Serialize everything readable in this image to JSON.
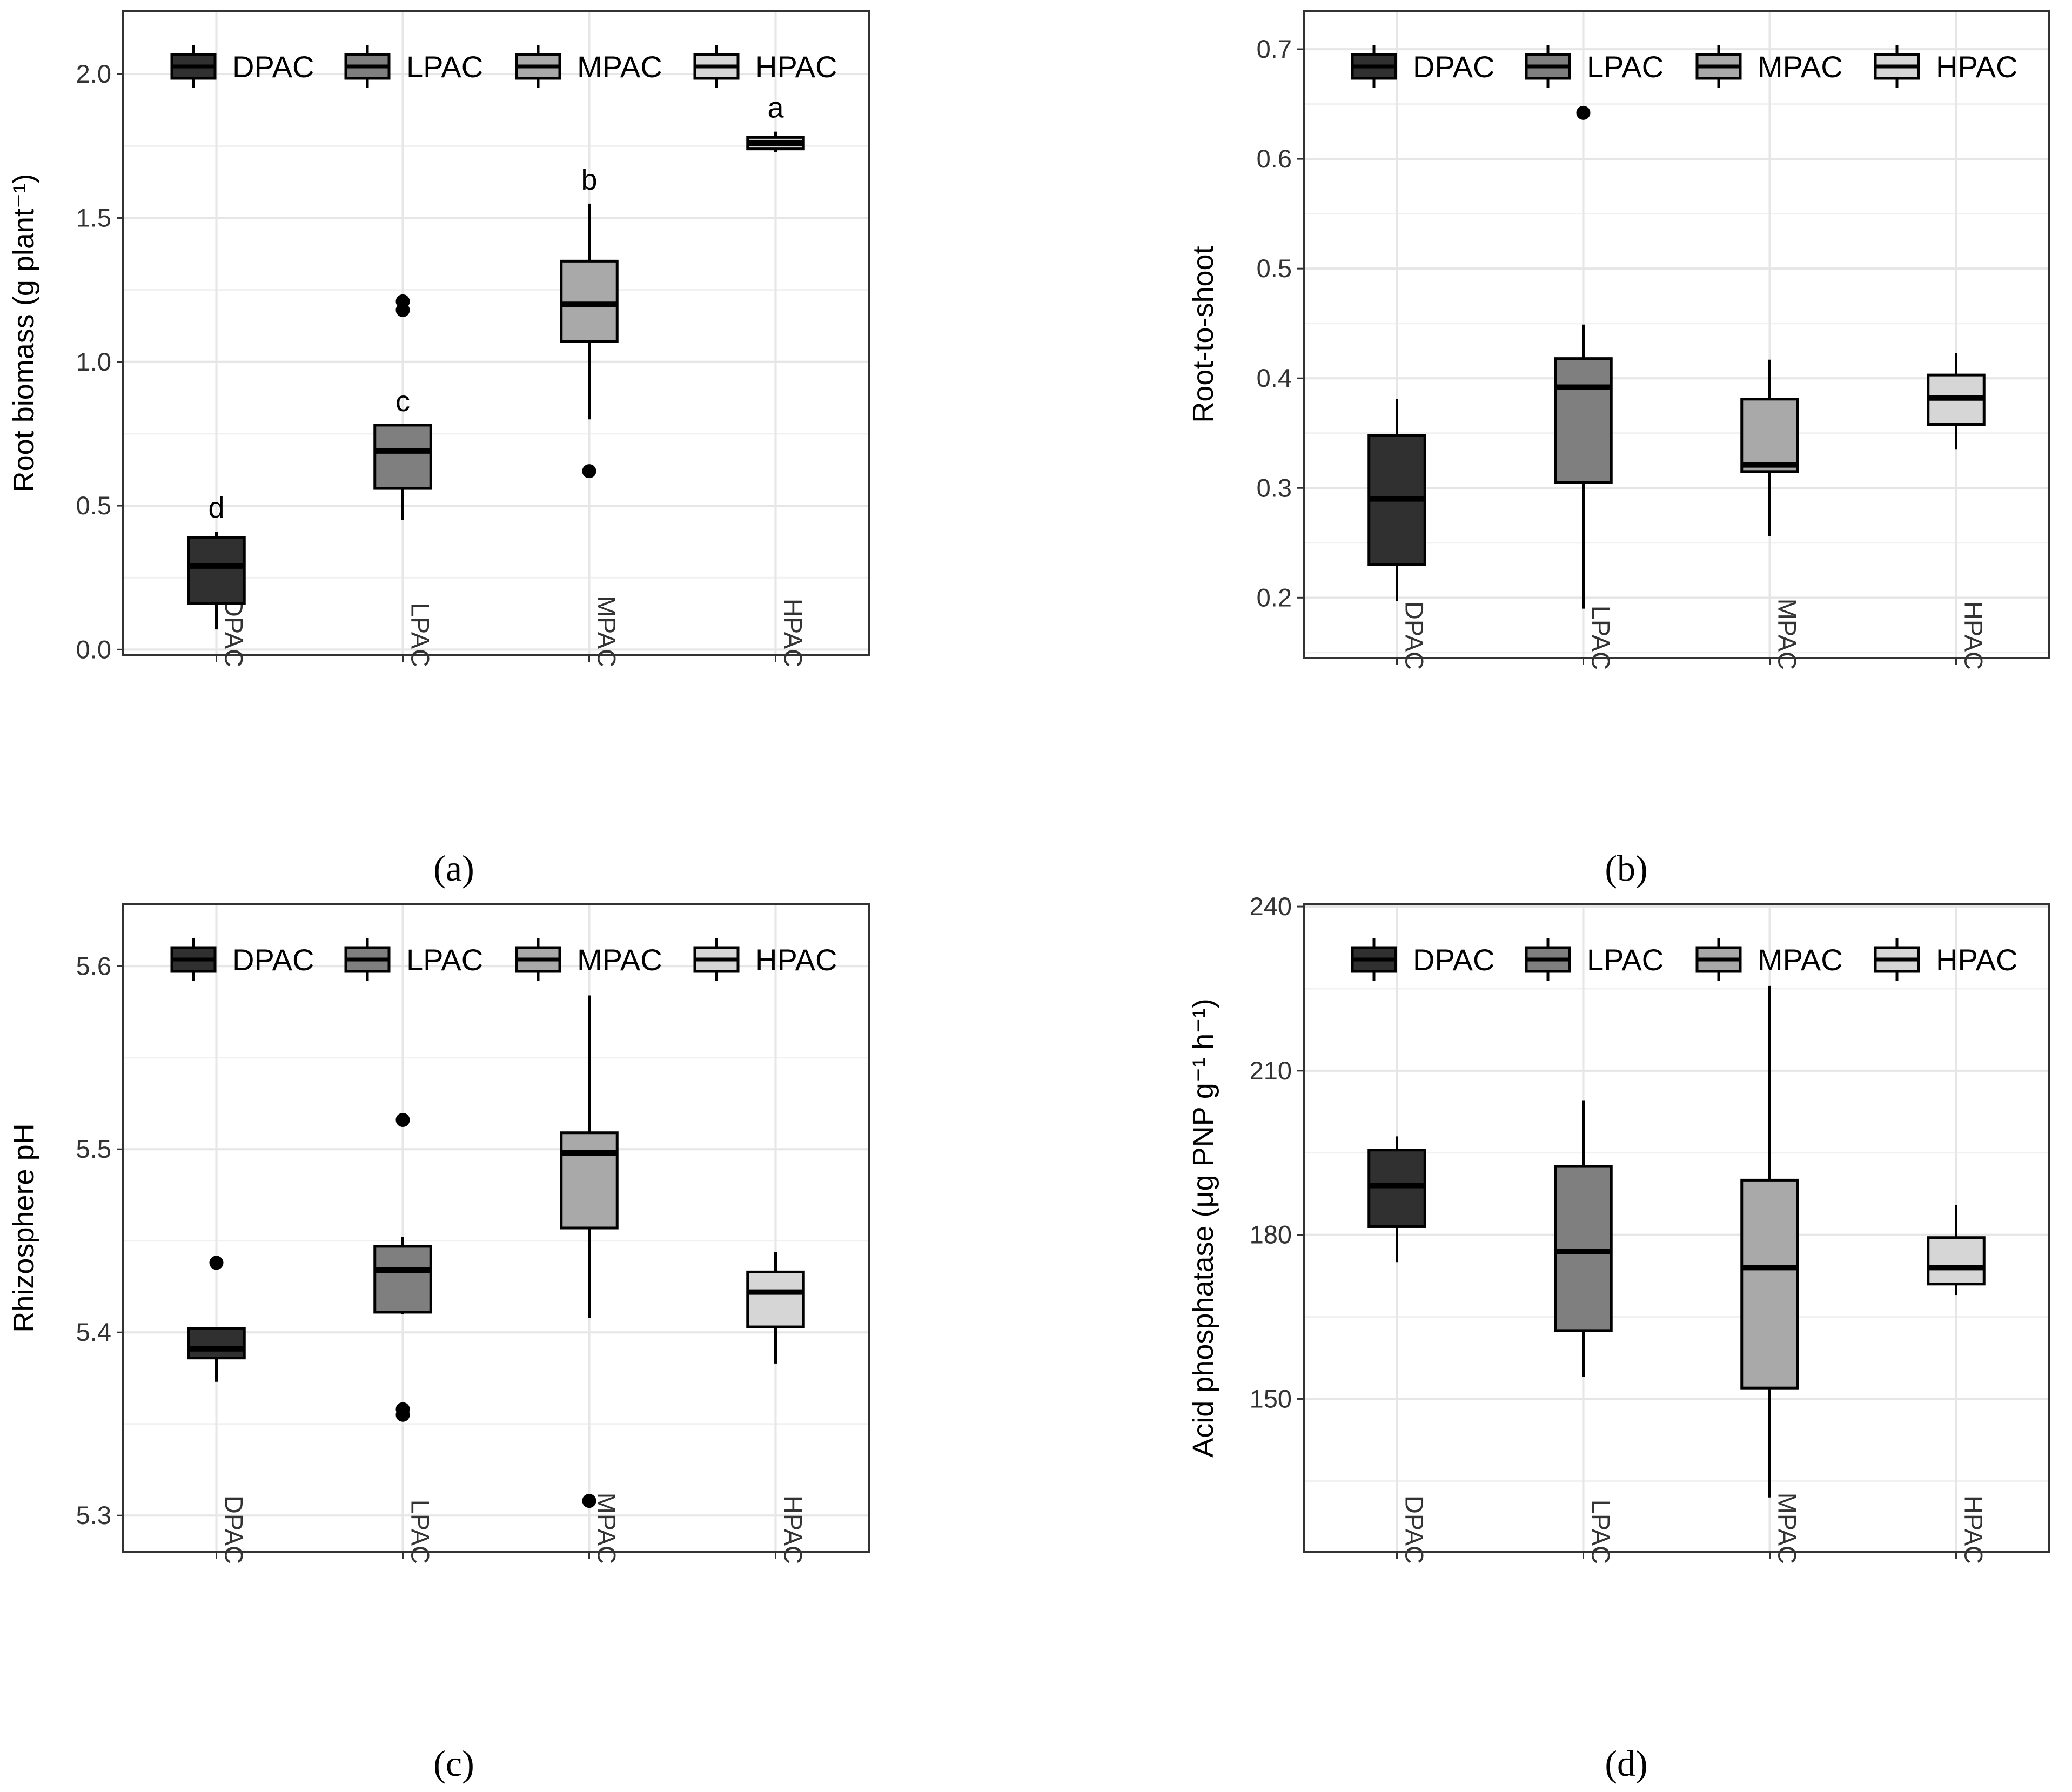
{
  "colors": {
    "DPAC": "#303030",
    "LPAC": "#7f7f7f",
    "MPAC": "#a9a9a9",
    "HPAC": "#d6d6d6",
    "grid_major": "#e6e6e6",
    "grid_minor": "#f1f1f1",
    "frame": "#333333"
  },
  "chart_data": [
    {
      "id": "a",
      "caption": "(a)",
      "type": "boxplot",
      "ylabel": "Root biomass (g plant⁻¹)",
      "xlabel": "",
      "categories": [
        "DPAC",
        "LPAC",
        "MPAC",
        "HPAC"
      ],
      "legend": [
        "DPAC",
        "LPAC",
        "MPAC",
        "HPAC"
      ],
      "legend_position": "top",
      "grid": true,
      "ylim": [
        -0.02,
        2.22
      ],
      "yticks": [
        0.0,
        0.5,
        1.0,
        1.5,
        2.0
      ],
      "ytick_labels": [
        "0.0",
        "0.5",
        "1.0",
        "1.5",
        "2.0"
      ],
      "boxes": [
        {
          "category": "DPAC",
          "whisker_low": 0.07,
          "q1": 0.16,
          "median": 0.29,
          "q3": 0.39,
          "whisker_high": 0.41,
          "outliers": [],
          "letter": "d"
        },
        {
          "category": "LPAC",
          "whisker_low": 0.45,
          "q1": 0.56,
          "median": 0.69,
          "q3": 0.78,
          "whisker_high": 0.78,
          "outliers": [
            1.18,
            1.21
          ],
          "letter": "c"
        },
        {
          "category": "MPAC",
          "whisker_low": 0.8,
          "q1": 1.07,
          "median": 1.2,
          "q3": 1.35,
          "whisker_high": 1.55,
          "outliers": [
            0.62
          ],
          "letter": "b"
        },
        {
          "category": "HPAC",
          "whisker_low": 1.73,
          "q1": 1.74,
          "median": 1.76,
          "q3": 1.78,
          "whisker_high": 1.8,
          "outliers": [],
          "letter": "a"
        }
      ]
    },
    {
      "id": "b",
      "caption": "(b)",
      "type": "boxplot",
      "ylabel": "Root-to-shoot",
      "xlabel": "",
      "categories": [
        "DPAC",
        "LPAC",
        "MPAC",
        "HPAC"
      ],
      "legend": [
        "DPAC",
        "LPAC",
        "MPAC",
        "HPAC"
      ],
      "legend_position": "top",
      "grid": true,
      "ylim": [
        0.145,
        0.735
      ],
      "yticks": [
        0.2,
        0.3,
        0.4,
        0.5,
        0.6,
        0.7
      ],
      "ytick_labels": [
        "0.2",
        "0.3",
        "0.4",
        "0.5",
        "0.6",
        "0.7"
      ],
      "boxes": [
        {
          "category": "DPAC",
          "whisker_low": 0.197,
          "q1": 0.23,
          "median": 0.29,
          "q3": 0.348,
          "whisker_high": 0.381,
          "outliers": []
        },
        {
          "category": "LPAC",
          "whisker_low": 0.19,
          "q1": 0.305,
          "median": 0.392,
          "q3": 0.418,
          "whisker_high": 0.449,
          "outliers": [
            0.642
          ]
        },
        {
          "category": "MPAC",
          "whisker_low": 0.256,
          "q1": 0.315,
          "median": 0.321,
          "q3": 0.381,
          "whisker_high": 0.417,
          "outliers": []
        },
        {
          "category": "HPAC",
          "whisker_low": 0.335,
          "q1": 0.358,
          "median": 0.382,
          "q3": 0.403,
          "whisker_high": 0.423,
          "outliers": []
        }
      ]
    },
    {
      "id": "c",
      "caption": "(c)",
      "type": "boxplot",
      "ylabel": "Rhizosphere pH",
      "xlabel": "",
      "categories": [
        "DPAC",
        "LPAC",
        "MPAC",
        "HPAC"
      ],
      "legend": [
        "DPAC",
        "LPAC",
        "MPAC",
        "HPAC"
      ],
      "legend_position": "top",
      "grid": true,
      "ylim": [
        5.28,
        5.634
      ],
      "yticks": [
        5.3,
        5.4,
        5.5,
        5.6
      ],
      "ytick_labels": [
        "5.3",
        "5.4",
        "5.5",
        "5.6"
      ],
      "boxes": [
        {
          "category": "DPAC",
          "whisker_low": 5.373,
          "q1": 5.386,
          "median": 5.391,
          "q3": 5.402,
          "whisker_high": 5.402,
          "outliers": [
            5.438
          ]
        },
        {
          "category": "LPAC",
          "whisker_low": 5.41,
          "q1": 5.411,
          "median": 5.434,
          "q3": 5.447,
          "whisker_high": 5.452,
          "outliers": [
            5.355,
            5.358,
            5.516
          ]
        },
        {
          "category": "MPAC",
          "whisker_low": 5.408,
          "q1": 5.457,
          "median": 5.498,
          "q3": 5.509,
          "whisker_high": 5.584,
          "outliers": [
            5.308
          ]
        },
        {
          "category": "HPAC",
          "whisker_low": 5.383,
          "q1": 5.403,
          "median": 5.422,
          "q3": 5.433,
          "whisker_high": 5.444,
          "outliers": []
        }
      ]
    },
    {
      "id": "d",
      "caption": "(d)",
      "type": "boxplot",
      "ylabel": "Acid phosphatase (μg PNP g⁻¹ h⁻¹)",
      "xlabel": "",
      "categories": [
        "DPAC",
        "LPAC",
        "MPAC",
        "HPAC"
      ],
      "legend": [
        "DPAC",
        "LPAC",
        "MPAC",
        "HPAC"
      ],
      "legend_position": "top",
      "grid": true,
      "ylim": [
        122,
        240.5
      ],
      "yticks": [
        150,
        180,
        210,
        240
      ],
      "ytick_labels": [
        "150",
        "180",
        "210",
        "240"
      ],
      "boxes": [
        {
          "category": "DPAC",
          "whisker_low": 175,
          "q1": 181.5,
          "median": 189,
          "q3": 195.5,
          "whisker_high": 198,
          "outliers": []
        },
        {
          "category": "LPAC",
          "whisker_low": 154,
          "q1": 162.5,
          "median": 177,
          "q3": 192.5,
          "whisker_high": 204.5,
          "outliers": []
        },
        {
          "category": "MPAC",
          "whisker_low": 132,
          "q1": 152,
          "median": 174,
          "q3": 190,
          "whisker_high": 225.5,
          "outliers": []
        },
        {
          "category": "HPAC",
          "whisker_low": 169,
          "q1": 171,
          "median": 174,
          "q3": 179.5,
          "whisker_high": 185.5,
          "outliers": []
        }
      ]
    }
  ]
}
